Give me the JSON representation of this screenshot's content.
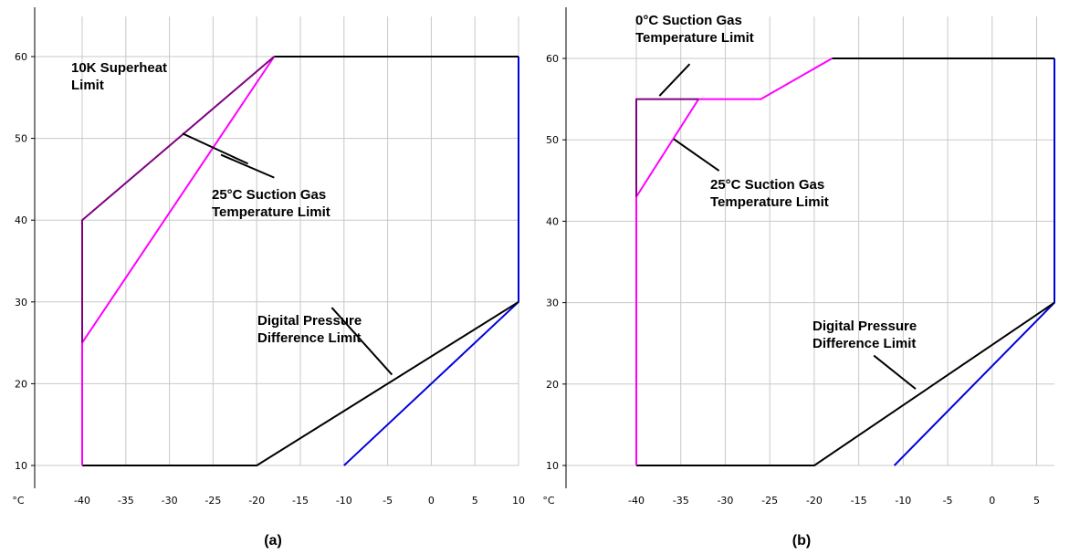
{
  "chart_data": [
    {
      "type": "line",
      "caption": "(a)",
      "x_unit_label": "°C",
      "xlim": [
        -40,
        10
      ],
      "ylim": [
        10,
        60
      ],
      "x_ticks": [
        -40,
        -35,
        -30,
        -25,
        -20,
        -15,
        -10,
        -5,
        0,
        5,
        10
      ],
      "y_ticks": [
        10,
        20,
        30,
        40,
        50,
        60
      ],
      "grid": true,
      "series": [
        {
          "color": "#0000dd",
          "points": [
            [
              -10,
              10
            ],
            [
              10,
              30
            ],
            [
              10,
              60
            ]
          ]
        },
        {
          "color": "#000000",
          "points": [
            [
              -18,
              60
            ],
            [
              10,
              60
            ]
          ]
        },
        {
          "color": "#000000",
          "points": [
            [
              -40,
              10
            ],
            [
              -20,
              10
            ],
            [
              10,
              30
            ]
          ]
        },
        {
          "color": "#ff00ff",
          "points": [
            [
              -40,
              10
            ],
            [
              -40,
              25
            ],
            [
              -18,
              60
            ]
          ]
        },
        {
          "color": "#800080",
          "points": [
            [
              -40,
              25
            ],
            [
              -40,
              40
            ],
            [
              -18,
              60
            ]
          ]
        }
      ],
      "annotations": [
        {
          "lines": [
            "10K Superheat",
            "Limit"
          ],
          "pointer": [
            [
              -28.5,
              50.6
            ],
            [
              -21,
              46.9
            ]
          ]
        },
        {
          "lines": [
            "25°C Suction Gas",
            "Temperature Limit"
          ],
          "pointer": [
            [
              -24.1,
              48
            ],
            [
              -18,
              45.2
            ]
          ]
        },
        {
          "lines": [
            "Digital Pressure",
            "Difference Limit"
          ],
          "pointer": [
            [
              -11.4,
              29.3
            ],
            [
              -4.5,
              21.1
            ]
          ]
        }
      ]
    },
    {
      "type": "line",
      "caption": "(b)",
      "x_unit_label": "°C",
      "xlim": [
        -40,
        7
      ],
      "ylim": [
        10,
        60
      ],
      "x_ticks": [
        -40,
        -35,
        -30,
        -25,
        -20,
        -15,
        -10,
        -5,
        0,
        5
      ],
      "y_ticks": [
        10,
        20,
        30,
        40,
        50,
        60
      ],
      "grid": true,
      "series": [
        {
          "color": "#0000dd",
          "points": [
            [
              -11,
              10
            ],
            [
              7,
              30
            ],
            [
              7,
              60
            ]
          ]
        },
        {
          "color": "#000000",
          "points": [
            [
              -18,
              60
            ],
            [
              7,
              60
            ]
          ]
        },
        {
          "color": "#000000",
          "points": [
            [
              -40,
              10
            ],
            [
              -20,
              10
            ],
            [
              7,
              30
            ]
          ]
        },
        {
          "color": "#ff00ff",
          "points": [
            [
              -40,
              10
            ],
            [
              -40,
              43
            ],
            [
              -33,
              55
            ],
            [
              -26,
              55
            ],
            [
              -18,
              60
            ]
          ]
        },
        {
          "color": "#800080",
          "points": [
            [
              -40,
              43
            ],
            [
              -40,
              55
            ],
            [
              -33,
              55
            ]
          ]
        }
      ],
      "annotations": [
        {
          "lines": [
            "0°C Suction Gas",
            "Temperature Limit"
          ],
          "pointer": [
            [
              -37.4,
              55.4
            ],
            [
              -34,
              59.3
            ]
          ]
        },
        {
          "lines": [
            "25°C Suction Gas",
            "Temperature Limit"
          ],
          "pointer": [
            [
              -35.8,
              50.1
            ],
            [
              -30.7,
              46.2
            ]
          ]
        },
        {
          "lines": [
            "Digital Pressure",
            "Difference Limit"
          ],
          "pointer": [
            [
              -13.3,
              23.5
            ],
            [
              -8.6,
              19.4
            ]
          ]
        }
      ]
    }
  ]
}
